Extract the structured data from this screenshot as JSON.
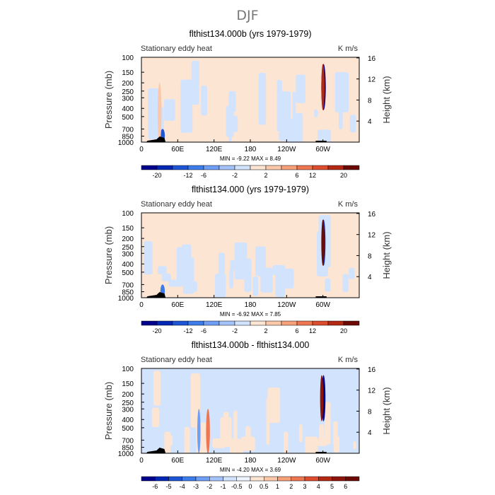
{
  "figure": {
    "season": "DJF"
  },
  "chart_data": [
    {
      "type": "heatmap",
      "title": "flthist134.000b (yrs 1979-1979)",
      "left_label": "Stationary eddy heat",
      "units": "K m/s",
      "ylabel": "Pressure (mb)",
      "ylabel_right": "Height (km)",
      "x_ticks": [
        "0",
        "60E",
        "120E",
        "180",
        "120W",
        "60W"
      ],
      "x_range": [
        0,
        360
      ],
      "y_ticks_pressure": [
        "100",
        "150",
        "200",
        "250",
        "300",
        "400",
        "500",
        "700",
        "850",
        "1000"
      ],
      "y_ticks_height": [
        "16",
        "12",
        "8",
        "4"
      ],
      "log_pressure_axis": true,
      "min_max_text": "MIN =   -9.22   MAX =    8.49",
      "min": -9.22,
      "max": 8.49,
      "colorbar_labels": [
        "-20",
        "-12",
        "-6",
        "-2",
        "2",
        "6",
        "12",
        "20"
      ],
      "colorbar_colors": [
        "#00008c",
        "#0528b4",
        "#1e55d7",
        "#3c7ceb",
        "#6e9ef5",
        "#a3c3fa",
        "#d2e3fd",
        "#fde5d3",
        "#fbc9aa",
        "#f7a07a",
        "#ee7650",
        "#dc4c2d",
        "#b42814",
        "#6e0a05"
      ],
      "bg_color": "#fde5d3",
      "features": [
        {
          "lon": 35,
          "p": 700,
          "width": 5,
          "value": -6,
          "kind": "column"
        },
        {
          "lon": 301,
          "p": 200,
          "width": 5,
          "value": -9.2,
          "kind": "jet"
        },
        {
          "lon": 300,
          "p": 300,
          "width": 3,
          "value": 8.5,
          "kind": "jet"
        },
        {
          "lon": 30,
          "p": 200,
          "width": 4,
          "value": 2,
          "kind": "column"
        }
      ]
    },
    {
      "type": "heatmap",
      "title": "flthist134.000 (yrs 1979-1979)",
      "left_label": "Stationary eddy heat",
      "units": "K m/s",
      "ylabel": "Pressure (mb)",
      "ylabel_right": "Height (km)",
      "x_ticks": [
        "0",
        "60E",
        "120E",
        "180",
        "120W",
        "60W"
      ],
      "x_range": [
        0,
        360
      ],
      "y_ticks_pressure": [
        "100",
        "150",
        "200",
        "250",
        "300",
        "400",
        "500",
        "700",
        "850",
        "1000"
      ],
      "y_ticks_height": [
        "16",
        "12",
        "8",
        "4"
      ],
      "log_pressure_axis": true,
      "min_max_text": "MIN =   -6.92   MAX =    7.85",
      "min": -6.92,
      "max": 7.85,
      "colorbar_labels": [
        "-20",
        "-12",
        "-6",
        "-2",
        "2",
        "6",
        "12",
        "20"
      ],
      "colorbar_colors": [
        "#00008c",
        "#0528b4",
        "#1e55d7",
        "#3c7ceb",
        "#6e9ef5",
        "#a3c3fa",
        "#d2e3fd",
        "#fde5d3",
        "#fbc9aa",
        "#f7a07a",
        "#ee7650",
        "#dc4c2d",
        "#b42814",
        "#6e0a05"
      ],
      "bg_color": "#fde5d3",
      "features": [
        {
          "lon": 35,
          "p": 700,
          "width": 5,
          "value": -4,
          "kind": "column"
        },
        {
          "lon": 301,
          "p": 200,
          "width": 4,
          "value": -6.9,
          "kind": "jet"
        },
        {
          "lon": 300,
          "p": 300,
          "width": 3,
          "value": 7.8,
          "kind": "jet"
        }
      ]
    },
    {
      "type": "heatmap",
      "title": "flthist134.000b - flthist134.000",
      "left_label": "Stationary eddy heat",
      "units": "K m/s",
      "ylabel": "Pressure (mb)",
      "ylabel_right": "Height (km)",
      "x_ticks": [
        "0",
        "60E",
        "120E",
        "180",
        "120W",
        "60W"
      ],
      "x_range": [
        0,
        360
      ],
      "y_ticks_pressure": [
        "100",
        "150",
        "200",
        "250",
        "300",
        "400",
        "500",
        "700",
        "850",
        "1000"
      ],
      "y_ticks_height": [
        "16",
        "12",
        "8",
        "4"
      ],
      "log_pressure_axis": true,
      "min_max_text": "MIN =   -4.20   MAX =    3.69",
      "min": -4.2,
      "max": 3.69,
      "colorbar_labels": [
        "-6",
        "-5",
        "-4",
        "-3",
        "-2",
        "-1",
        "-0.5",
        "0",
        "0.5",
        "1",
        "2",
        "3",
        "4",
        "5",
        "6"
      ],
      "colorbar_colors": [
        "#00008c",
        "#0528b4",
        "#1e55d7",
        "#3c7ceb",
        "#6e9ef5",
        "#a3c3fa",
        "#d2e3fd",
        "#eef3fd",
        "#fde5d3",
        "#fbc9aa",
        "#f7a07a",
        "#ee7650",
        "#dc4c2d",
        "#b42814",
        "#8c140a",
        "#6e0a05"
      ],
      "bg_color": "#d2e3fd",
      "features": [
        {
          "lon": 301,
          "p": 200,
          "width": 4,
          "value": -4.2,
          "kind": "jet"
        },
        {
          "lon": 298,
          "p": 300,
          "width": 3,
          "value": 3.7,
          "kind": "jet"
        },
        {
          "lon": 110,
          "p": 300,
          "width": 4,
          "value": 2.0,
          "kind": "column"
        },
        {
          "lon": 95,
          "p": 300,
          "width": 3,
          "value": -2.0,
          "kind": "column"
        }
      ]
    }
  ]
}
